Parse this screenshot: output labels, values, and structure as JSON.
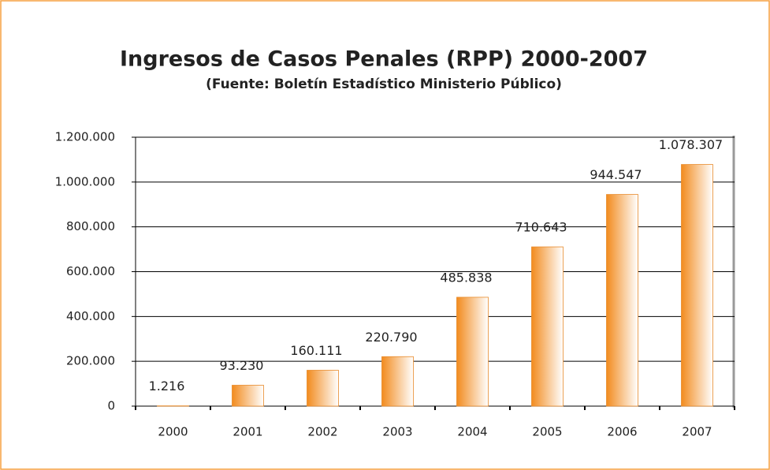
{
  "chart_data": {
    "type": "bar",
    "title": "Ingresos de Casos  Penales (RPP) 2000-2007",
    "subtitle": "(Fuente: Boletín Estadístico Ministerio Público)",
    "categories": [
      "2000",
      "2001",
      "2002",
      "2003",
      "2004",
      "2005",
      "2006",
      "2007"
    ],
    "values": [
      1216,
      93230,
      160111,
      220790,
      485838,
      710643,
      944547,
      1078307
    ],
    "value_labels": [
      "1.216",
      "93.230",
      "160.111",
      "220.790",
      "485.838",
      "710.643",
      "944.547",
      "1.078.307"
    ],
    "color": "#f28b1e",
    "ylim": [
      0,
      1200000
    ],
    "yticks": [
      0,
      {
        "value": 200000,
        "label": "200.000"
      },
      {
        "value": 400000,
        "label": "400.000"
      },
      {
        "value": 600000,
        "label": "600.000"
      },
      {
        "value": 800000,
        "label": "800.000"
      },
      {
        "value": 1000000,
        "label": "1.000.000"
      },
      {
        "value": 1200000,
        "label": "1.200.000"
      }
    ],
    "grid": true
  }
}
